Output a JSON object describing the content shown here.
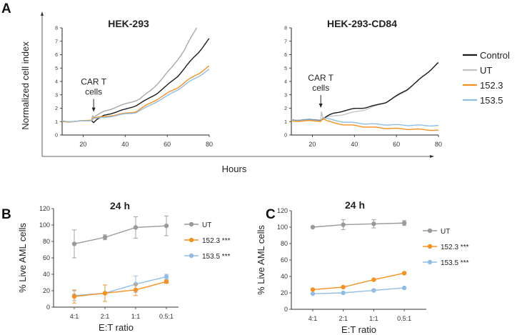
{
  "figure": {
    "panel_letters": [
      "A",
      "B",
      "C"
    ]
  },
  "chart_data": [
    {
      "id": "A_outer",
      "type": "line",
      "ylabel": "Normalized cell index",
      "xlabel": "Hours",
      "legend": {
        "placement": "right",
        "entries": [
          {
            "name": "Control",
            "color": "#1a1a1a"
          },
          {
            "name": "UT",
            "color": "#c4c4c4"
          },
          {
            "name": "152.3",
            "color": "#f7901e"
          },
          {
            "name": "153.5",
            "color": "#8fbde6"
          }
        ]
      }
    },
    {
      "id": "A1",
      "type": "line",
      "title": "HEK-293",
      "xlim": [
        10,
        80
      ],
      "ylim": [
        0,
        8
      ],
      "xticks": [
        20,
        40,
        60,
        80
      ],
      "yticks": [
        0,
        1,
        2,
        3,
        4,
        5,
        6,
        7,
        8
      ],
      "annotation": {
        "text": [
          "CAR T",
          "cells"
        ],
        "x": 25,
        "y": 1.3
      },
      "series": [
        {
          "name": "UT",
          "color": "#a8a8a8",
          "points": [
            [
              10,
              1.05
            ],
            [
              17,
              1.0
            ],
            [
              24,
              1.12
            ],
            [
              24.5,
              1.45
            ],
            [
              25,
              1.35
            ],
            [
              30,
              1.75
            ],
            [
              35,
              2.05
            ],
            [
              40,
              2.3
            ],
            [
              47,
              2.7
            ],
            [
              52,
              3.3
            ],
            [
              57,
              4.1
            ],
            [
              62,
              5.0
            ],
            [
              68,
              6.3
            ],
            [
              74,
              8.0
            ]
          ]
        },
        {
          "name": "Control",
          "color": "#1a1a1a",
          "points": [
            [
              24,
              1.1
            ],
            [
              25,
              0.95
            ],
            [
              26.5,
              1.15
            ],
            [
              30,
              1.45
            ],
            [
              35,
              1.7
            ],
            [
              40,
              1.9
            ],
            [
              45,
              2.2
            ],
            [
              50,
              2.6
            ],
            [
              55,
              3.1
            ],
            [
              60,
              3.7
            ],
            [
              65,
              4.4
            ],
            [
              70,
              5.3
            ],
            [
              75,
              6.2
            ],
            [
              80,
              7.2
            ]
          ]
        },
        {
          "name": "152.3",
          "color": "#f7901e",
          "points": [
            [
              10,
              1.0
            ],
            [
              17,
              1.0
            ],
            [
              24,
              1.15
            ],
            [
              25,
              1.3
            ],
            [
              30,
              1.35
            ],
            [
              35,
              1.5
            ],
            [
              40,
              1.6
            ],
            [
              45,
              1.75
            ],
            [
              50,
              2.2
            ],
            [
              55,
              2.65
            ],
            [
              60,
              3.1
            ],
            [
              65,
              3.55
            ],
            [
              70,
              4.1
            ],
            [
              75,
              4.6
            ],
            [
              80,
              5.15
            ]
          ]
        },
        {
          "name": "153.5",
          "color": "#8fbde6",
          "points": [
            [
              10,
              1.05
            ],
            [
              17,
              1.0
            ],
            [
              24,
              1.1
            ],
            [
              25,
              1.25
            ],
            [
              30,
              1.28
            ],
            [
              35,
              1.45
            ],
            [
              40,
              1.55
            ],
            [
              45,
              1.68
            ],
            [
              50,
              2.05
            ],
            [
              55,
              2.5
            ],
            [
              60,
              2.9
            ],
            [
              65,
              3.4
            ],
            [
              70,
              3.9
            ],
            [
              75,
              4.4
            ],
            [
              80,
              4.9
            ]
          ]
        }
      ]
    },
    {
      "id": "A2",
      "type": "line",
      "title": "HEK-293-CD84",
      "xlim": [
        10,
        80
      ],
      "ylim": [
        0,
        8
      ],
      "xticks": [
        20,
        40,
        60,
        80
      ],
      "yticks": [
        0,
        1,
        2,
        3,
        4,
        5,
        6,
        7,
        8
      ],
      "annotation": {
        "text": [
          "CAR T",
          "cells"
        ],
        "x": 24,
        "y": 1.6
      },
      "series": [
        {
          "name": "UT",
          "color": "#c4c4c4",
          "points": [
            [
              10,
              1.15
            ],
            [
              24,
              1.15
            ],
            [
              24.3,
              1.75
            ],
            [
              25,
              1.3
            ],
            [
              30,
              1.4
            ],
            [
              35,
              1.55
            ],
            [
              40,
              1.7
            ],
            [
              45,
              1.9
            ],
            [
              50,
              2.15
            ],
            [
              55,
              2.45
            ],
            [
              60,
              2.85
            ],
            [
              65,
              3.35
            ],
            [
              70,
              4.0
            ],
            [
              75,
              4.7
            ],
            [
              80,
              5.45
            ]
          ]
        },
        {
          "name": "Control",
          "color": "#1a1a1a",
          "points": [
            [
              10,
              1.1
            ],
            [
              24,
              1.12
            ],
            [
              25,
              1.2
            ],
            [
              27,
              1.4
            ],
            [
              30,
              1.6
            ],
            [
              35,
              1.82
            ],
            [
              40,
              1.95
            ],
            [
              45,
              2.05
            ],
            [
              50,
              2.2
            ],
            [
              55,
              2.45
            ],
            [
              60,
              2.9
            ],
            [
              65,
              3.4
            ],
            [
              70,
              4.0
            ],
            [
              75,
              4.7
            ],
            [
              80,
              5.4
            ]
          ]
        },
        {
          "name": "153.5",
          "color": "#8fbde6",
          "points": [
            [
              10,
              1.1
            ],
            [
              24,
              1.1
            ],
            [
              25,
              1.3
            ],
            [
              30,
              1.1
            ],
            [
              35,
              0.98
            ],
            [
              40,
              0.9
            ],
            [
              45,
              0.85
            ],
            [
              50,
              0.8
            ],
            [
              60,
              0.75
            ],
            [
              70,
              0.72
            ],
            [
              80,
              0.7
            ]
          ]
        },
        {
          "name": "152.3",
          "color": "#f7901e",
          "points": [
            [
              10,
              1.05
            ],
            [
              24,
              1.05
            ],
            [
              25,
              1.25
            ],
            [
              27,
              1.05
            ],
            [
              30,
              0.9
            ],
            [
              35,
              0.78
            ],
            [
              40,
              0.7
            ],
            [
              45,
              0.62
            ],
            [
              50,
              0.55
            ],
            [
              60,
              0.47
            ],
            [
              70,
              0.42
            ],
            [
              80,
              0.35
            ]
          ]
        }
      ]
    },
    {
      "id": "B",
      "type": "line",
      "title": "24 h",
      "xlabel": "E:T ratio",
      "ylabel": "% Live AML cells",
      "categories": [
        "4:1",
        "2:1",
        "1:1",
        "0.5:1"
      ],
      "ylim": [
        0,
        120
      ],
      "yticks": [
        0,
        20,
        40,
        60,
        80,
        100,
        120
      ],
      "legend": {
        "placement": "right"
      },
      "series": [
        {
          "name": "UT",
          "color": "#999999",
          "values": [
            77,
            85,
            97,
            99
          ],
          "errors": [
            17,
            3,
            13,
            12
          ]
        },
        {
          "name": "152.3 ***",
          "color": "#f7901e",
          "values": [
            13,
            17,
            21,
            31
          ],
          "errors": [
            8,
            10,
            7,
            2
          ]
        },
        {
          "name": "153.5 ***",
          "color": "#8fbde6",
          "values": [
            14,
            17,
            28,
            37
          ],
          "errors": [
            6,
            10,
            10,
            3
          ]
        }
      ]
    },
    {
      "id": "C",
      "type": "line",
      "title": "24 h",
      "xlabel": "E:T ratio",
      "ylabel": "% Live AML cells",
      "categories": [
        "4:1",
        "2:1",
        "1:1",
        "0.5:1"
      ],
      "ylim": [
        0,
        120
      ],
      "yticks": [
        0,
        20,
        40,
        60,
        80,
        100,
        120
      ],
      "legend": {
        "placement": "right"
      },
      "series": [
        {
          "name": "UT",
          "color": "#999999",
          "values": [
            100,
            103,
            104,
            105
          ],
          "errors": [
            1,
            6,
            5,
            3
          ]
        },
        {
          "name": "152.3 ***",
          "color": "#f7901e",
          "values": [
            24,
            27,
            36,
            44
          ],
          "errors": [
            1,
            1,
            1,
            1
          ]
        },
        {
          "name": "153.5 ***",
          "color": "#8fbde6",
          "values": [
            19,
            20,
            23,
            26
          ],
          "errors": [
            1,
            1,
            1,
            1
          ]
        }
      ]
    }
  ]
}
